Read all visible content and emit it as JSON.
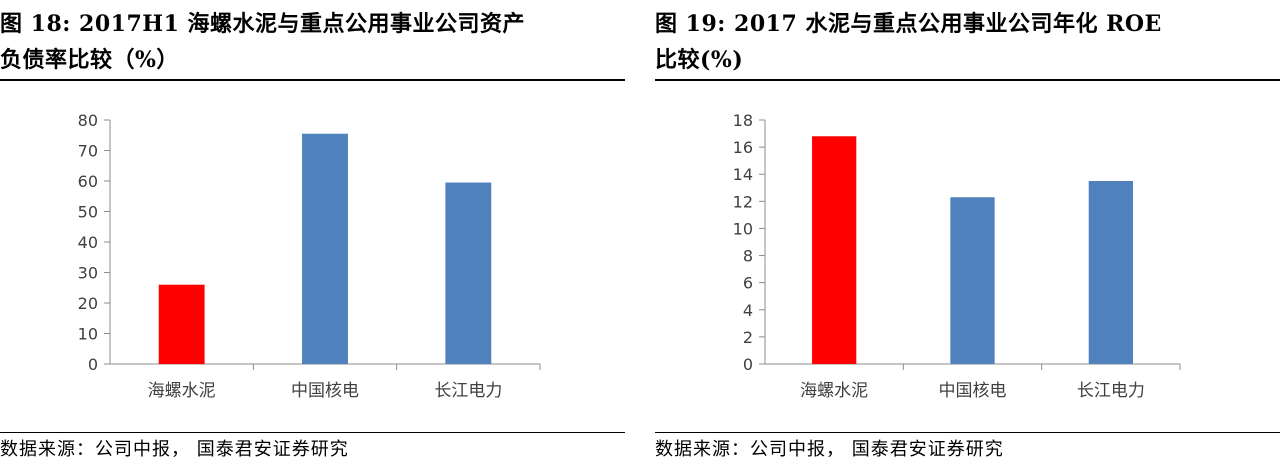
{
  "panels": [
    {
      "title_line1": "图 18:    2017H1 海螺水泥与重点公用事业公司资产",
      "title_line2": "负债率比较（%）",
      "source": "数据来源：公司中报，  国泰君安证券研究"
    },
    {
      "title_line1": "图 19:  2017 水泥与重点公用事业公司年化 ROE",
      "title_line2": "比较(%)",
      "source": "数据来源：公司中报，  国泰君安证券研究"
    }
  ],
  "chart_data": [
    {
      "type": "bar",
      "title": "2017H1 海螺水泥与重点公用事业公司资产负债率比较（%）",
      "categories": [
        "海螺水泥",
        "中国核电",
        "长江电力"
      ],
      "values": [
        26,
        75.5,
        59.5
      ],
      "colors": [
        "#ff0000",
        "#4f81bd",
        "#4f81bd"
      ],
      "ylim": [
        0,
        80
      ],
      "yticks": [
        0,
        10,
        20,
        30,
        40,
        50,
        60,
        70,
        80
      ],
      "grid": false,
      "legend": "none"
    },
    {
      "type": "bar",
      "title": "2017 水泥与重点公用事业公司年化 ROE 比较(%)",
      "categories": [
        "海螺水泥",
        "中国核电",
        "长江电力"
      ],
      "values": [
        16.8,
        12.3,
        13.5
      ],
      "colors": [
        "#ff0000",
        "#4f81bd",
        "#4f81bd"
      ],
      "ylim": [
        0,
        18
      ],
      "yticks": [
        0,
        2,
        4,
        6,
        8,
        10,
        12,
        14,
        16,
        18
      ],
      "grid": false,
      "legend": "none"
    }
  ]
}
